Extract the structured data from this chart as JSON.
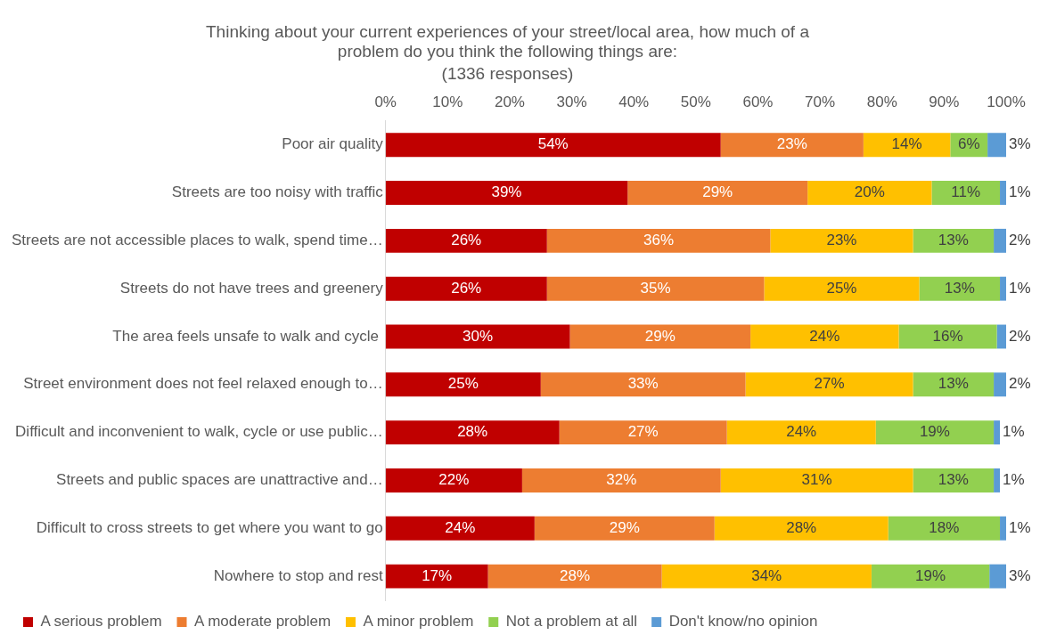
{
  "chart_data": {
    "type": "bar",
    "orientation": "horizontal",
    "stacked": true,
    "title": "Thinking about your current experiences of your street/local area, how much of a problem do you think the following things are:",
    "subtitle": "(1336 responses)",
    "categories": [
      "Poor air quality",
      "Streets are too noisy with traffic",
      "Streets are not accessible places to walk, spend time…",
      "Streets do not have trees and greenery",
      "The area feels unsafe to walk and cycle ",
      "Street environment does not feel relaxed enough to…",
      "Difficult and inconvenient to walk, cycle or use public…",
      "Streets and public spaces are unattractive and…",
      "Difficult to cross streets to get where you want to go",
      "Nowhere to stop and rest"
    ],
    "series": [
      {
        "name": "A serious problem",
        "color": "#c00000",
        "values": [
          54,
          39,
          26,
          26,
          29.7,
          25,
          28,
          22,
          24,
          16.5
        ],
        "value_labels": [
          "54%",
          "39%",
          "26%",
          "26%",
          "30%",
          "25%",
          "28%",
          "22%",
          "24%",
          "17%"
        ]
      },
      {
        "name": "A moderate problem",
        "color": "#ed7d31",
        "values": [
          23,
          29,
          36,
          35,
          29.1,
          33,
          27,
          32,
          29,
          28
        ],
        "value_labels": [
          "23%",
          "29%",
          "36%",
          "35%",
          "29%",
          "33%",
          "27%",
          "32%",
          "29%",
          "28%"
        ]
      },
      {
        "name": "A minor problem",
        "color": "#ffc000",
        "values": [
          14,
          20,
          23,
          25,
          23.9,
          27,
          24,
          31,
          28,
          33.8
        ],
        "value_labels": [
          "14%",
          "20%",
          "23%",
          "25%",
          "24%",
          "27%",
          "24%",
          "31%",
          "28%",
          "34%"
        ]
      },
      {
        "name": "Not a problem at all",
        "color": "#92d050",
        "values": [
          6,
          11,
          13,
          13,
          15.8,
          13,
          19,
          13,
          18,
          19
        ],
        "value_labels": [
          "6%",
          "11%",
          "13%",
          "13%",
          "16%",
          "13%",
          "19%",
          "13%",
          "18%",
          "19%"
        ]
      },
      {
        "name": "Don't know/no opinion",
        "color": "#5b9bd5",
        "values": [
          3,
          1,
          2,
          1,
          1.5,
          2,
          1,
          1,
          1,
          2.7
        ],
        "value_labels": [
          "3%",
          "1%",
          "2%",
          "1%",
          "2%",
          "2%",
          "1%",
          "1%",
          "1%",
          "3%"
        ]
      }
    ],
    "xlim": [
      0,
      100
    ],
    "xticks": [
      {
        "value": 0,
        "label": "0%"
      },
      {
        "value": 10,
        "label": "10%"
      },
      {
        "value": 20,
        "label": "20%"
      },
      {
        "value": 30,
        "label": "30%"
      },
      {
        "value": 40,
        "label": "40%"
      },
      {
        "value": 50,
        "label": "50%"
      },
      {
        "value": 60,
        "label": "60%"
      },
      {
        "value": 70,
        "label": "70%"
      },
      {
        "value": 80,
        "label": "80%"
      },
      {
        "value": 90,
        "label": "90%"
      },
      {
        "value": 100,
        "label": "100%"
      }
    ],
    "grid": false,
    "legend": "bottom"
  }
}
